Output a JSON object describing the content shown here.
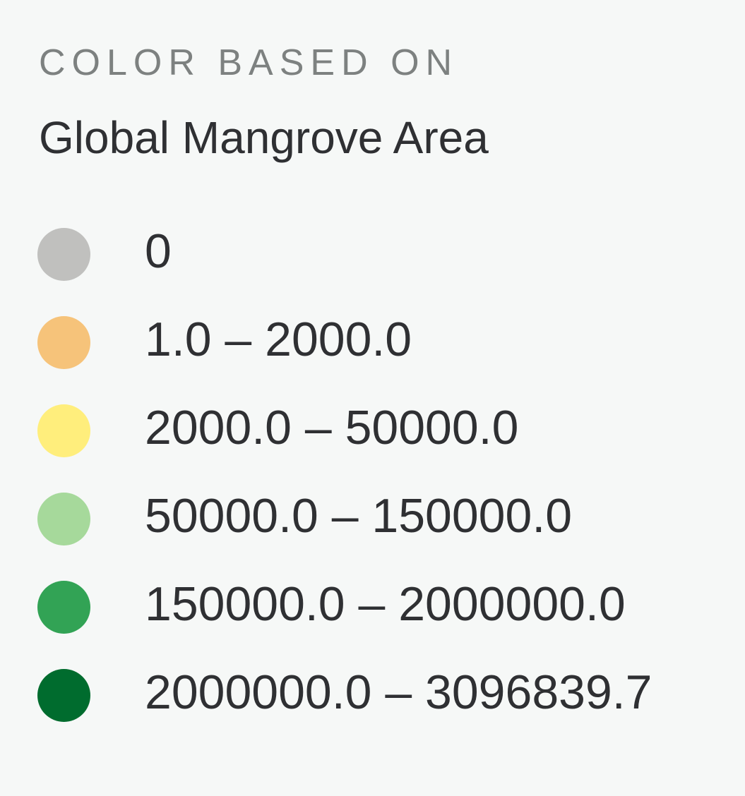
{
  "legend": {
    "heading": "COLOR BASED ON",
    "title": "Global Mangrove Area",
    "items": [
      {
        "label": "0",
        "color": "#c0c0be"
      },
      {
        "label": "1.0 – 2000.0",
        "color": "#f6c37a"
      },
      {
        "label": "2000.0 – 50000.0",
        "color": "#ffee7c"
      },
      {
        "label": "50000.0 – 150000.0",
        "color": "#a6d99b"
      },
      {
        "label": "150000.0 – 2000000.0",
        "color": "#32a355"
      },
      {
        "label": "2000000.0 – 3096839.7",
        "color": "#006c2e"
      }
    ]
  }
}
